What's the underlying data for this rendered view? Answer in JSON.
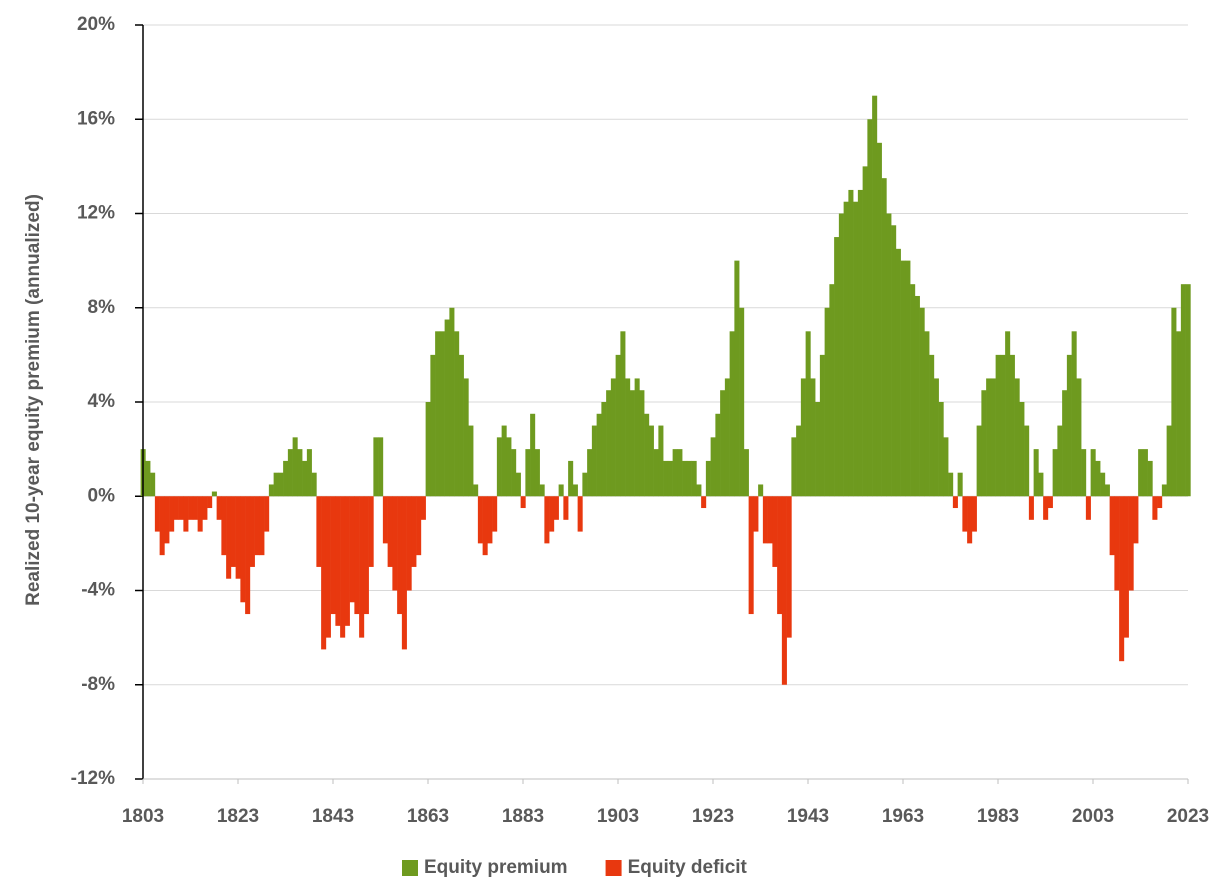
{
  "chart_data": {
    "type": "bar",
    "y_label": "Realized 10-year equity premium (annualized)",
    "x": [
      1803,
      1804,
      1805,
      1806,
      1807,
      1808,
      1809,
      1810,
      1811,
      1812,
      1813,
      1814,
      1815,
      1816,
      1817,
      1818,
      1819,
      1820,
      1821,
      1822,
      1823,
      1824,
      1825,
      1826,
      1827,
      1828,
      1829,
      1830,
      1831,
      1832,
      1833,
      1834,
      1835,
      1836,
      1837,
      1838,
      1839,
      1840,
      1841,
      1842,
      1843,
      1844,
      1845,
      1846,
      1847,
      1848,
      1849,
      1850,
      1851,
      1852,
      1853,
      1854,
      1855,
      1856,
      1857,
      1858,
      1859,
      1860,
      1861,
      1862,
      1863,
      1864,
      1865,
      1866,
      1867,
      1868,
      1869,
      1870,
      1871,
      1872,
      1873,
      1874,
      1875,
      1876,
      1877,
      1878,
      1879,
      1880,
      1881,
      1882,
      1883,
      1884,
      1885,
      1886,
      1887,
      1888,
      1889,
      1890,
      1891,
      1892,
      1893,
      1894,
      1895,
      1896,
      1897,
      1898,
      1899,
      1900,
      1901,
      1902,
      1903,
      1904,
      1905,
      1906,
      1907,
      1908,
      1909,
      1910,
      1911,
      1912,
      1913,
      1914,
      1915,
      1916,
      1917,
      1918,
      1919,
      1920,
      1921,
      1922,
      1923,
      1924,
      1925,
      1926,
      1927,
      1928,
      1929,
      1930,
      1931,
      1932,
      1933,
      1934,
      1935,
      1936,
      1937,
      1938,
      1939,
      1940,
      1941,
      1942,
      1943,
      1944,
      1945,
      1946,
      1947,
      1948,
      1949,
      1950,
      1951,
      1952,
      1953,
      1954,
      1955,
      1956,
      1957,
      1958,
      1959,
      1960,
      1961,
      1962,
      1963,
      1964,
      1965,
      1966,
      1967,
      1968,
      1969,
      1970,
      1971,
      1972,
      1973,
      1974,
      1975,
      1976,
      1977,
      1978,
      1979,
      1980,
      1981,
      1982,
      1983,
      1984,
      1985,
      1986,
      1987,
      1988,
      1989,
      1990,
      1991,
      1992,
      1993,
      1994,
      1995,
      1996,
      1997,
      1998,
      1999,
      2000,
      2001,
      2002,
      2003,
      2004,
      2005,
      2006,
      2007,
      2008,
      2009,
      2010,
      2011,
      2012,
      2013,
      2014,
      2015,
      2016,
      2017,
      2018,
      2019,
      2020,
      2021,
      2022,
      2023
    ],
    "series": [
      {
        "name": "Equity premium",
        "color": "#6e9a1f",
        "values": [
          2,
          1.5,
          1,
          null,
          null,
          null,
          null,
          null,
          null,
          null,
          null,
          null,
          null,
          null,
          null,
          0.2,
          null,
          null,
          null,
          null,
          null,
          null,
          null,
          null,
          null,
          null,
          null,
          0.5,
          1,
          1,
          1.5,
          2,
          2.5,
          2,
          1.5,
          2,
          1,
          null,
          null,
          null,
          null,
          null,
          null,
          null,
          null,
          null,
          null,
          null,
          null,
          2.5,
          2.5,
          null,
          null,
          null,
          null,
          null,
          null,
          null,
          null,
          null,
          4,
          6,
          7,
          7,
          7.5,
          8,
          7,
          6,
          5,
          3,
          0.5,
          null,
          null,
          null,
          null,
          2.5,
          3,
          2.5,
          2,
          1,
          null,
          2,
          3.5,
          2,
          0.5,
          null,
          null,
          null,
          0.5,
          null,
          1.5,
          0.5,
          null,
          1,
          2,
          3,
          3.5,
          4,
          4.5,
          5,
          6,
          7,
          5,
          4.5,
          5,
          4.5,
          3.5,
          3,
          2,
          3,
          1.5,
          1.5,
          2,
          2,
          1.5,
          1.5,
          1.5,
          0.5,
          null,
          1.5,
          2.5,
          3.5,
          4.5,
          5,
          7,
          10,
          8,
          2,
          null,
          null,
          0.5,
          null,
          null,
          null,
          null,
          null,
          null,
          2.5,
          3,
          5,
          7,
          5,
          4,
          6,
          8,
          9,
          11,
          12,
          12.5,
          13,
          12.5,
          13,
          14,
          16,
          17,
          15,
          13.5,
          12,
          11.5,
          10.5,
          10,
          10,
          9,
          8.5,
          8,
          7,
          6,
          5,
          4,
          2.5,
          1,
          null,
          1,
          null,
          null,
          null,
          3,
          4.5,
          5,
          5,
          6,
          6,
          7,
          6,
          5,
          4,
          3,
          null,
          2,
          1,
          null,
          null,
          2,
          3,
          4.5,
          6,
          7,
          5,
          2,
          null,
          2,
          1.5,
          1,
          0.5,
          null,
          null,
          null,
          null,
          null,
          null,
          2,
          2,
          1.5,
          null,
          null,
          0.5,
          3,
          8,
          7,
          9,
          9
        ]
      },
      {
        "name": "Equity deficit",
        "color": "#e8380f",
        "values": [
          null,
          null,
          null,
          -1.5,
          -2.5,
          -2,
          -1.5,
          -1,
          -1,
          -1.5,
          -1,
          -1,
          -1.5,
          -1,
          -0.5,
          null,
          -1,
          -2.5,
          -3.5,
          -3,
          -3.5,
          -4.5,
          -5,
          -3,
          -2.5,
          -2.5,
          -1.5,
          null,
          null,
          null,
          null,
          null,
          null,
          null,
          null,
          null,
          null,
          -3,
          -6.5,
          -6,
          -5,
          -5.5,
          -6,
          -5.5,
          -4.5,
          -5,
          -6,
          -5,
          -3,
          null,
          null,
          -2,
          -3,
          -4,
          -5,
          -6.5,
          -4,
          -3,
          -2.5,
          -1,
          null,
          null,
          null,
          null,
          null,
          null,
          null,
          null,
          null,
          null,
          null,
          -2,
          -2.5,
          -2,
          -1.5,
          null,
          null,
          null,
          null,
          null,
          -0.5,
          null,
          null,
          null,
          null,
          -2,
          -1.5,
          -1,
          null,
          -1,
          null,
          null,
          -1.5,
          null,
          null,
          null,
          null,
          null,
          null,
          null,
          null,
          null,
          null,
          null,
          null,
          null,
          null,
          null,
          null,
          null,
          null,
          null,
          null,
          null,
          null,
          null,
          null,
          null,
          -0.5,
          null,
          null,
          null,
          null,
          null,
          null,
          null,
          null,
          null,
          -5,
          -1.5,
          null,
          -2,
          -2,
          -3,
          -5,
          -8,
          -6,
          null,
          null,
          null,
          null,
          null,
          null,
          null,
          null,
          null,
          null,
          null,
          null,
          null,
          null,
          null,
          null,
          null,
          null,
          null,
          null,
          null,
          null,
          null,
          null,
          null,
          null,
          null,
          null,
          null,
          null,
          null,
          null,
          null,
          null,
          -0.5,
          null,
          -1.5,
          -2,
          -1.5,
          null,
          null,
          null,
          null,
          null,
          null,
          null,
          null,
          null,
          null,
          null,
          -1,
          null,
          null,
          -1,
          -0.5,
          null,
          null,
          null,
          null,
          null,
          null,
          null,
          -1,
          null,
          null,
          null,
          null,
          -2.5,
          -4,
          -7,
          -6,
          -4,
          -2,
          null,
          null,
          null,
          -1,
          -0.5,
          null,
          null,
          null,
          null,
          null,
          null
        ]
      }
    ],
    "xlim": [
      1803,
      2023
    ],
    "xticks": [
      1803,
      1823,
      1843,
      1863,
      1883,
      1903,
      1923,
      1943,
      1963,
      1983,
      2003,
      2023
    ],
    "ylim": [
      -12,
      20
    ],
    "yticks": [
      {
        "value": -12,
        "label": "-12%"
      },
      {
        "value": -8,
        "label": "-8%"
      },
      {
        "value": -4,
        "label": "-4%"
      },
      {
        "value": 0,
        "label": "0%"
      },
      {
        "value": 4,
        "label": "4%"
      },
      {
        "value": 8,
        "label": "8%"
      },
      {
        "value": 12,
        "label": "12%"
      },
      {
        "value": 16,
        "label": "16%"
      },
      {
        "value": 20,
        "label": "20%"
      }
    ],
    "grid": true,
    "legend": "bottom"
  }
}
